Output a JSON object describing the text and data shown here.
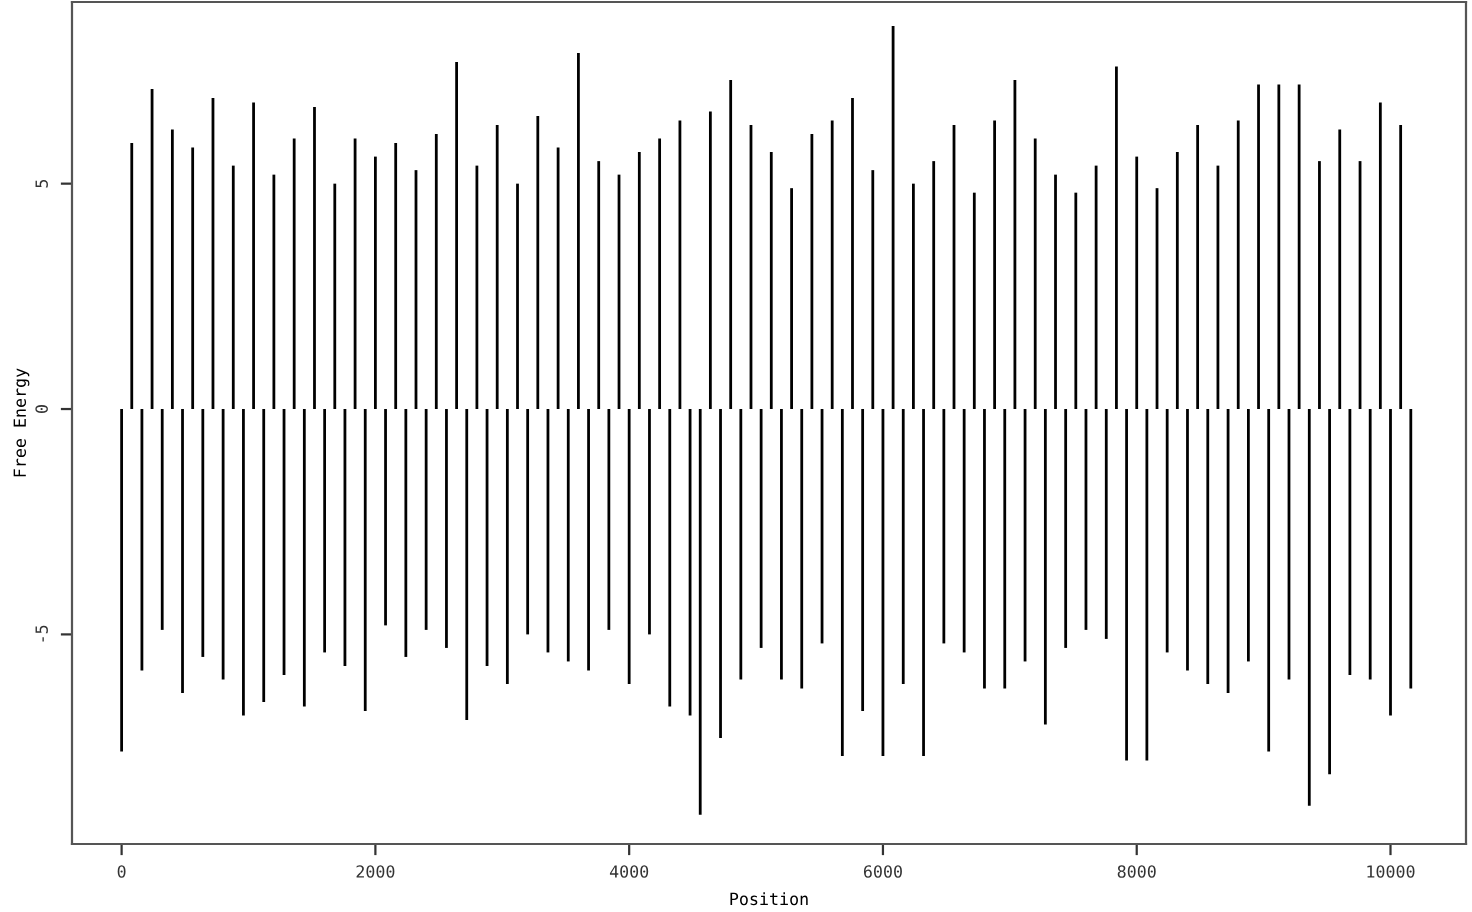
{
  "chart_data": {
    "type": "bar",
    "xlabel": "Position",
    "ylabel": "Free Energy",
    "color": "#000000",
    "x": [
      0,
      80,
      160,
      240,
      320,
      400,
      480,
      560,
      640,
      720,
      800,
      880,
      960,
      1040,
      1120,
      1200,
      1280,
      1360,
      1440,
      1520,
      1600,
      1680,
      1760,
      1840,
      1920,
      2000,
      2080,
      2160,
      2240,
      2320,
      2400,
      2480,
      2560,
      2640,
      2720,
      2800,
      2880,
      2960,
      3040,
      3120,
      3200,
      3280,
      3360,
      3440,
      3520,
      3600,
      3680,
      3760,
      3840,
      3920,
      4000,
      4080,
      4160,
      4240,
      4320,
      4400,
      4480,
      4560,
      4640,
      4720,
      4800,
      4880,
      4960,
      5040,
      5120,
      5200,
      5280,
      5360,
      5440,
      5520,
      5600,
      5680,
      5760,
      5840,
      5920,
      6000,
      6080,
      6160,
      6240,
      6320,
      6400,
      6480,
      6560,
      6640,
      6720,
      6800,
      6880,
      6960,
      7040,
      7120,
      7200,
      7280,
      7360,
      7440,
      7520,
      7600,
      7680,
      7760,
      7840,
      7920,
      8000,
      8080,
      8160,
      8240,
      8320,
      8400,
      8480,
      8560,
      8640,
      8720,
      8800,
      8880,
      8960,
      9040,
      9120,
      9200,
      9280,
      9360,
      9440,
      9520,
      9600,
      9680,
      9760,
      9840,
      9920,
      10000,
      10080,
      10160
    ],
    "values": [
      -7.6,
      5.9,
      -5.8,
      7.1,
      -4.9,
      6.2,
      -6.3,
      5.8,
      -5.5,
      6.9,
      -6.0,
      5.4,
      -6.8,
      6.8,
      -6.5,
      5.2,
      -5.9,
      6.0,
      -6.6,
      6.7,
      -5.4,
      5.0,
      -5.7,
      6.0,
      -6.7,
      5.6,
      -4.8,
      5.9,
      -5.5,
      5.3,
      -4.9,
      6.1,
      -5.3,
      7.7,
      -6.9,
      5.4,
      -5.7,
      6.3,
      -6.1,
      5.0,
      -5.0,
      6.5,
      -5.4,
      5.8,
      -5.6,
      7.9,
      -5.8,
      5.5,
      -4.9,
      5.2,
      -6.1,
      5.7,
      -5.0,
      6.0,
      -6.6,
      6.4,
      -6.8,
      -9.0,
      6.6,
      -7.3,
      7.3,
      -6.0,
      6.3,
      -5.3,
      5.7,
      -6.0,
      4.9,
      -6.2,
      6.1,
      -5.2,
      6.4,
      -7.7,
      6.9,
      -6.7,
      5.3,
      -7.7,
      8.5,
      -6.1,
      5.0,
      -7.7,
      5.5,
      -5.2,
      6.3,
      -5.4,
      4.8,
      -6.2,
      6.4,
      -6.2,
      7.3,
      -5.6,
      6.0,
      -7.0,
      5.2,
      -5.3,
      4.8,
      -4.9,
      5.4,
      -5.1,
      7.6,
      -7.8,
      5.6,
      -7.8,
      4.9,
      -5.4,
      5.7,
      -5.8,
      6.3,
      -6.1,
      5.4,
      -6.3,
      6.4,
      -5.6,
      7.2,
      -7.6,
      7.2,
      -6.0,
      7.2,
      -8.8,
      5.5,
      -8.1,
      6.2,
      -5.9,
      5.5,
      -6.0,
      6.8,
      -6.8,
      6.3,
      -6.2
    ],
    "xlim": [
      -391,
      10595
    ],
    "ylim": [
      -9.65,
      9.03
    ],
    "xticks": [
      0,
      2000,
      4000,
      6000,
      8000,
      10000
    ],
    "yticks": [
      -5,
      0,
      5
    ],
    "grid": false
  }
}
